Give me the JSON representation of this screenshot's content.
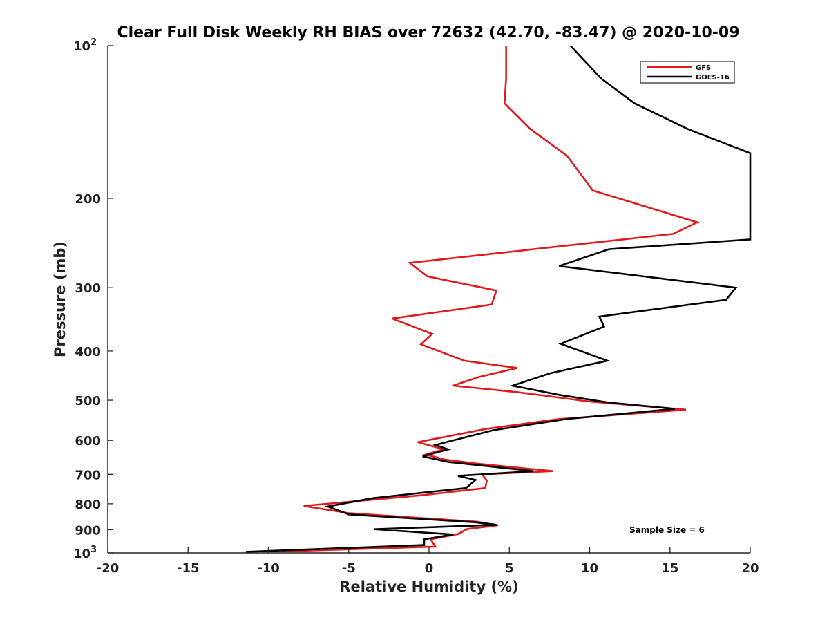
{
  "chart_data": {
    "type": "line",
    "title": "Clear Full Disk Weekly RH BIAS over 72632 (42.70, -83.47) @ 2020-10-09",
    "xlabel": "Relative Humidity (%)",
    "ylabel": "Pressure (mb)",
    "xlim": [
      -20,
      20
    ],
    "ylim": [
      1000,
      100
    ],
    "y_scale": "log",
    "x_ticks": [
      "-20",
      "-15",
      "-10",
      "-5",
      "0",
      "5",
      "10",
      "15",
      "20"
    ],
    "y_ticks": [
      {
        "value": 100,
        "label": "10",
        "sup": "2"
      },
      {
        "value": 200,
        "label": "200",
        "sup": ""
      },
      {
        "value": 300,
        "label": "300",
        "sup": ""
      },
      {
        "value": 400,
        "label": "400",
        "sup": ""
      },
      {
        "value": 500,
        "label": "500",
        "sup": ""
      },
      {
        "value": 600,
        "label": "600",
        "sup": ""
      },
      {
        "value": 700,
        "label": "700",
        "sup": ""
      },
      {
        "value": 800,
        "label": "800",
        "sup": ""
      },
      {
        "value": 900,
        "label": "900",
        "sup": ""
      },
      {
        "value": 1000,
        "label": "10",
        "sup": "3"
      }
    ],
    "grid": false,
    "legend_position": "top-right",
    "annotation": "Sample Size = 6",
    "series": [
      {
        "name": "GFS",
        "color": "#e31a1c",
        "points": [
          [
            4.8,
            100
          ],
          [
            4.8,
            116
          ],
          [
            4.7,
            130
          ],
          [
            6.3,
            146
          ],
          [
            8.6,
            165
          ],
          [
            10.2,
            193
          ],
          [
            16.7,
            223
          ],
          [
            15.2,
            235
          ],
          [
            -1.2,
            268
          ],
          [
            -0.1,
            285
          ],
          [
            4.2,
            304
          ],
          [
            3.9,
            324
          ],
          [
            -2.3,
            345
          ],
          [
            0.2,
            370
          ],
          [
            -0.5,
            388
          ],
          [
            2.2,
            418
          ],
          [
            5.5,
            432
          ],
          [
            3.1,
            450
          ],
          [
            1.5,
            468
          ],
          [
            5.5,
            482
          ],
          [
            10.0,
            503
          ],
          [
            16.0,
            522
          ],
          [
            8.0,
            545
          ],
          [
            3.5,
            570
          ],
          [
            -0.7,
            605
          ],
          [
            0.9,
            625
          ],
          [
            -0.2,
            640
          ],
          [
            1.0,
            655
          ],
          [
            3.0,
            667
          ],
          [
            7.7,
            690
          ],
          [
            3.3,
            700
          ],
          [
            3.6,
            720
          ],
          [
            3.5,
            745
          ],
          [
            -0.5,
            770
          ],
          [
            -7.8,
            808
          ],
          [
            -5.0,
            835
          ],
          [
            3.0,
            868
          ],
          [
            4.3,
            882
          ],
          [
            2.4,
            897
          ],
          [
            1.8,
            918
          ],
          [
            0.1,
            940
          ],
          [
            0.4,
            972
          ],
          [
            -9.2,
            993
          ]
        ]
      },
      {
        "name": "GOES-16",
        "color": "#000000",
        "points": [
          [
            8.8,
            100
          ],
          [
            10.7,
            116
          ],
          [
            12.8,
            130
          ],
          [
            16.1,
            146
          ],
          [
            20.0,
            163
          ],
          [
            20.0,
            241
          ],
          [
            11.2,
            252
          ],
          [
            8.1,
            272
          ],
          [
            19.1,
            300
          ],
          [
            18.5,
            317
          ],
          [
            10.6,
            342
          ],
          [
            10.9,
            358
          ],
          [
            8.2,
            387
          ],
          [
            11.1,
            418
          ],
          [
            7.6,
            442
          ],
          [
            5.2,
            468
          ],
          [
            8.1,
            488
          ],
          [
            11.1,
            505
          ],
          [
            15.3,
            520
          ],
          [
            8.5,
            545
          ],
          [
            4.0,
            573
          ],
          [
            1.5,
            600
          ],
          [
            0.4,
            613
          ],
          [
            1.2,
            625
          ],
          [
            -0.4,
            645
          ],
          [
            1.2,
            662
          ],
          [
            6.5,
            690
          ],
          [
            1.8,
            705
          ],
          [
            2.9,
            718
          ],
          [
            2.3,
            745
          ],
          [
            -3.5,
            780
          ],
          [
            -6.3,
            810
          ],
          [
            -5.0,
            840
          ],
          [
            2.8,
            870
          ],
          [
            4.2,
            880
          ],
          [
            -3.4,
            898
          ],
          [
            1.5,
            920
          ],
          [
            -0.3,
            940
          ],
          [
            -0.3,
            965
          ],
          [
            -11.4,
            995
          ]
        ]
      }
    ]
  }
}
